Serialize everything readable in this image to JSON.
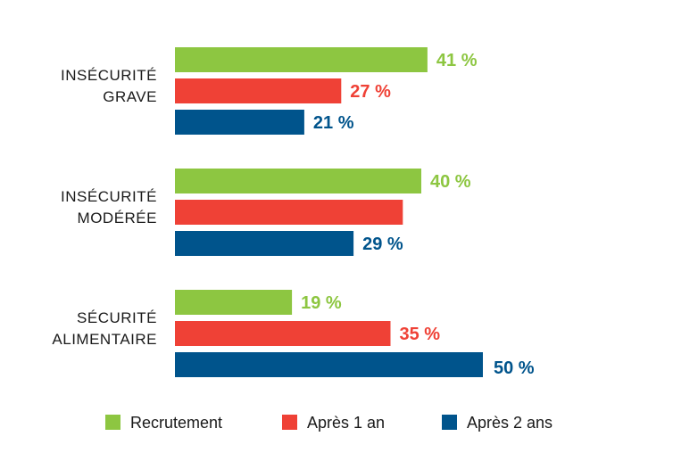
{
  "chart_data": {
    "type": "bar",
    "orientation": "horizontal",
    "categories": [
      [
        "INSÉCURITÉ",
        "GRAVE"
      ],
      [
        "INSÉCURITÉ",
        "MODÉRÉE"
      ],
      [
        "SÉCURITÉ",
        "ALIMENTAIRE"
      ]
    ],
    "series": [
      {
        "name": "Recrutement",
        "color": "#8dc641",
        "values": [
          41,
          40,
          19
        ],
        "labels": [
          "41 %",
          "40 %",
          "19 %"
        ]
      },
      {
        "name": "Après 1 an",
        "color": "#ef4136",
        "values": [
          27,
          37,
          35
        ],
        "labels": [
          "27 %",
          "",
          "35 %"
        ]
      },
      {
        "name": "Après 2 ans",
        "color": "#00548c",
        "values": [
          21,
          29,
          50
        ],
        "labels": [
          "21 %",
          "29 %",
          "50 %"
        ]
      }
    ],
    "highlight": {
      "category_index": 2,
      "series_index": 2
    },
    "xlim": [
      0,
      50
    ],
    "legend_position": "bottom",
    "grid": false
  }
}
